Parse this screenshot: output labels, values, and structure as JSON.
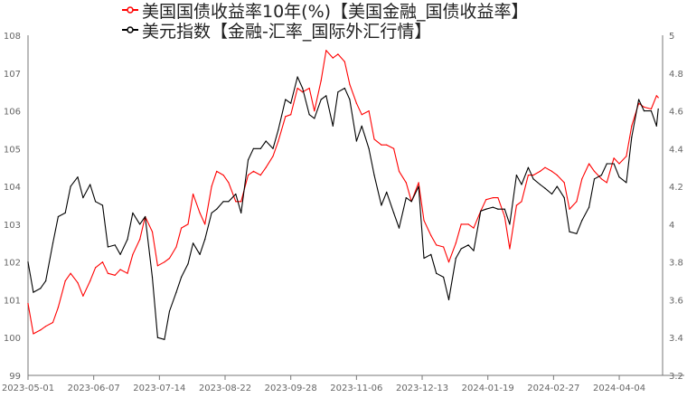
{
  "chart_data": {
    "type": "line",
    "title": "",
    "legend_position": "top",
    "grid": false,
    "x_ticks": [
      "2023-05-01",
      "2023-06-07",
      "2023-07-14",
      "2023-08-22",
      "2023-09-28",
      "2023-11-06",
      "2023-12-13",
      "2024-01-19",
      "2024-02-27",
      "2024-04-04"
    ],
    "y_left": {
      "range": [
        99,
        108
      ],
      "ticks": [
        "99",
        "100",
        "101",
        "102",
        "103",
        "104",
        "105",
        "106",
        "107",
        "108"
      ]
    },
    "y_right": {
      "range": [
        3.2,
        5
      ],
      "ticks": [
        "3.2",
        "3.4",
        "3.6",
        "3.8",
        "4",
        "4.2",
        "4.4",
        "4.6",
        "4.8",
        "5"
      ]
    },
    "x": [
      "2023-05-01",
      "2023-05-04",
      "2023-05-08",
      "2023-05-11",
      "2023-05-15",
      "2023-05-18",
      "2023-05-22",
      "2023-05-25",
      "2023-05-29",
      "2023-06-01",
      "2023-06-05",
      "2023-06-08",
      "2023-06-12",
      "2023-06-15",
      "2023-06-19",
      "2023-06-22",
      "2023-06-26",
      "2023-06-29",
      "2023-07-03",
      "2023-07-06",
      "2023-07-10",
      "2023-07-13",
      "2023-07-17",
      "2023-07-20",
      "2023-07-24",
      "2023-07-27",
      "2023-07-31",
      "2023-08-03",
      "2023-08-07",
      "2023-08-10",
      "2023-08-14",
      "2023-08-17",
      "2023-08-21",
      "2023-08-24",
      "2023-08-28",
      "2023-08-31",
      "2023-09-04",
      "2023-09-07",
      "2023-09-11",
      "2023-09-14",
      "2023-09-18",
      "2023-09-21",
      "2023-09-25",
      "2023-09-28",
      "2023-10-02",
      "2023-10-05",
      "2023-10-09",
      "2023-10-12",
      "2023-10-16",
      "2023-10-19",
      "2023-10-23",
      "2023-10-26",
      "2023-10-30",
      "2023-11-02",
      "2023-11-06",
      "2023-11-09",
      "2023-11-13",
      "2023-11-16",
      "2023-11-20",
      "2023-11-23",
      "2023-11-27",
      "2023-11-30",
      "2023-12-04",
      "2023-12-07",
      "2023-12-11",
      "2023-12-14",
      "2023-12-18",
      "2023-12-21",
      "2023-12-25",
      "2023-12-28",
      "2024-01-01",
      "2024-01-04",
      "2024-01-08",
      "2024-01-11",
      "2024-01-15",
      "2024-01-18",
      "2024-01-22",
      "2024-01-25",
      "2024-01-29",
      "2024-02-01",
      "2024-02-05",
      "2024-02-08",
      "2024-02-12",
      "2024-02-15",
      "2024-02-19",
      "2024-02-22",
      "2024-02-26",
      "2024-02-29",
      "2024-03-04",
      "2024-03-07",
      "2024-03-11",
      "2024-03-14",
      "2024-03-18",
      "2024-03-21",
      "2024-03-25",
      "2024-03-28",
      "2024-04-01",
      "2024-04-04",
      "2024-04-08",
      "2024-04-11",
      "2024-04-15",
      "2024-04-18",
      "2024-04-22",
      "2024-04-25",
      "2024-04-26"
    ],
    "series": [
      {
        "name": "美国国债收益率10年(%)【美国金融_国债收益率】",
        "axis": "right",
        "color": "#ff0000",
        "values": [
          3.58,
          3.42,
          3.44,
          3.46,
          3.48,
          3.56,
          3.7,
          3.74,
          3.69,
          3.62,
          3.7,
          3.77,
          3.8,
          3.74,
          3.73,
          3.76,
          3.74,
          3.84,
          3.92,
          4.04,
          3.96,
          3.78,
          3.8,
          3.82,
          3.88,
          3.98,
          4.0,
          4.16,
          4.06,
          4.0,
          4.2,
          4.28,
          4.26,
          4.22,
          4.12,
          4.12,
          4.26,
          4.28,
          4.26,
          4.3,
          4.36,
          4.44,
          4.57,
          4.58,
          4.72,
          4.7,
          4.72,
          4.6,
          4.76,
          4.92,
          4.88,
          4.9,
          4.86,
          4.74,
          4.64,
          4.58,
          4.6,
          4.45,
          4.42,
          4.42,
          4.4,
          4.28,
          4.22,
          4.12,
          4.22,
          4.02,
          3.94,
          3.89,
          3.88,
          3.8,
          3.9,
          4.0,
          4.0,
          3.98,
          4.07,
          4.13,
          4.14,
          4.14,
          4.04,
          3.87,
          4.1,
          4.12,
          4.26,
          4.26,
          4.28,
          4.3,
          4.28,
          4.26,
          4.22,
          4.08,
          4.12,
          4.24,
          4.32,
          4.28,
          4.24,
          4.22,
          4.35,
          4.32,
          4.36,
          4.52,
          4.64,
          4.62,
          4.61,
          4.68,
          4.67
        ]
      },
      {
        "name": "美元指数【金融-汇率_国际外汇行情】",
        "axis": "left",
        "color": "#000000",
        "values": [
          102.0,
          101.2,
          101.3,
          101.5,
          102.5,
          103.2,
          103.3,
          104.0,
          104.25,
          103.7,
          104.05,
          103.6,
          103.5,
          102.4,
          102.45,
          102.2,
          102.6,
          103.3,
          103.0,
          103.2,
          101.6,
          100.0,
          99.95,
          100.7,
          101.2,
          101.6,
          101.95,
          102.5,
          102.2,
          102.6,
          103.3,
          103.4,
          103.6,
          103.6,
          103.8,
          103.3,
          104.7,
          105.0,
          105.0,
          105.2,
          105.0,
          105.5,
          106.3,
          106.2,
          106.9,
          106.6,
          105.9,
          105.8,
          106.3,
          106.4,
          105.6,
          106.5,
          106.6,
          106.3,
          105.2,
          105.6,
          105.0,
          104.3,
          103.5,
          103.85,
          103.3,
          102.9,
          103.7,
          103.6,
          104.0,
          102.1,
          102.2,
          101.7,
          101.6,
          101.0,
          102.1,
          102.35,
          102.45,
          102.3,
          103.35,
          103.4,
          103.45,
          103.4,
          103.4,
          103.0,
          104.3,
          104.05,
          104.5,
          104.2,
          104.05,
          103.95,
          103.8,
          104.0,
          103.7,
          102.8,
          102.75,
          103.1,
          103.45,
          104.2,
          104.3,
          104.6,
          104.6,
          104.25,
          104.1,
          105.3,
          106.3,
          106.0,
          106.0,
          105.6,
          106.05
        ]
      }
    ]
  }
}
